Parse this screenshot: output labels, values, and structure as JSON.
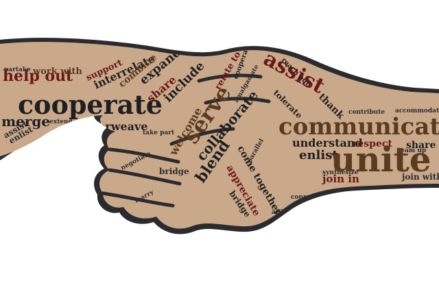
{
  "palette": {
    "background": "#ffffff",
    "outline": "#2b2b2f",
    "skin": "#c9a98a",
    "text_dark": "#1f1f22",
    "text_brown": "#5b3a22",
    "text_maroon": "#6b1717"
  },
  "words": {
    "cooperate": "cooperate",
    "help_out": "help out",
    "merge": "merge",
    "interweave": "interweave",
    "work_with": "work with",
    "partake": "partake",
    "support": "support",
    "interrelate": "interrelate",
    "combine": "combine",
    "expand": "expand",
    "share": "share",
    "include": "include",
    "serve": "serve",
    "welcome": "welcome",
    "collaborate": "collaborate",
    "blend": "blend",
    "bridge": "bridge",
    "come_together": "come together",
    "appreciate": "appreciate",
    "assist": "assist",
    "relate_to": "relate to",
    "cooperate_small": "cooperate",
    "reach_out": "reach out",
    "thank": "thank",
    "tolerate": "tolerate",
    "communicate": "communicate",
    "understand": "understand",
    "respect": "respect",
    "enlist": "enlist",
    "unite": "unite",
    "join_in": "join in",
    "accommodate": "accommodate",
    "contribute": "contribute",
    "share_right": "share",
    "join_with": "join with",
    "assist_left": "assist",
    "enlist_left": "enlist",
    "marry": "marry",
    "negotiate": "negotiate",
    "take_part": "take part",
    "affine": "affine",
    "amalgamate": "amalgamate",
    "parallel": "parallel",
    "synthesize": "synthesize",
    "extend": "extend",
    "connect": "connect",
    "team_up": "team up"
  }
}
